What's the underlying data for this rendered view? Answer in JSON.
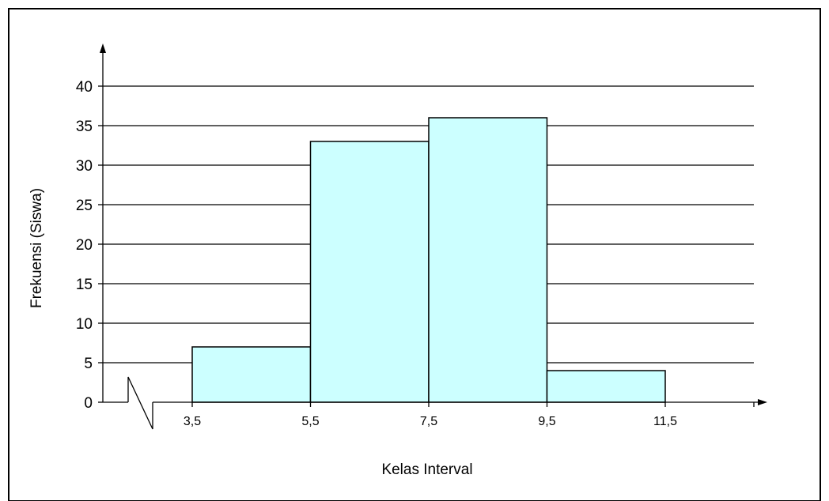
{
  "chart_data": {
    "type": "bar",
    "title": "",
    "xlabel": "Kelas Interval",
    "ylabel": "Frekuensi (Siswa)",
    "x_tick_labels": [
      "3,5",
      "5,5",
      "7,5",
      "9,5",
      "11,5"
    ],
    "x_boundaries": [
      3.5,
      5.5,
      7.5,
      9.5,
      11.5
    ],
    "y_ticks": [
      0,
      5,
      10,
      15,
      20,
      25,
      30,
      35,
      40
    ],
    "ylim": [
      0,
      45
    ],
    "grid": true,
    "axis_break": true,
    "bins": [
      {
        "from": 3.5,
        "to": 5.5,
        "value": 7
      },
      {
        "from": 5.5,
        "to": 7.5,
        "value": 33
      },
      {
        "from": 7.5,
        "to": 9.5,
        "value": 36
      },
      {
        "from": 9.5,
        "to": 11.5,
        "value": 4
      }
    ],
    "colors": {
      "bar_fill": "#ccffff",
      "bar_stroke": "#000000",
      "grid": "#000000",
      "background": "#ffffff"
    }
  }
}
